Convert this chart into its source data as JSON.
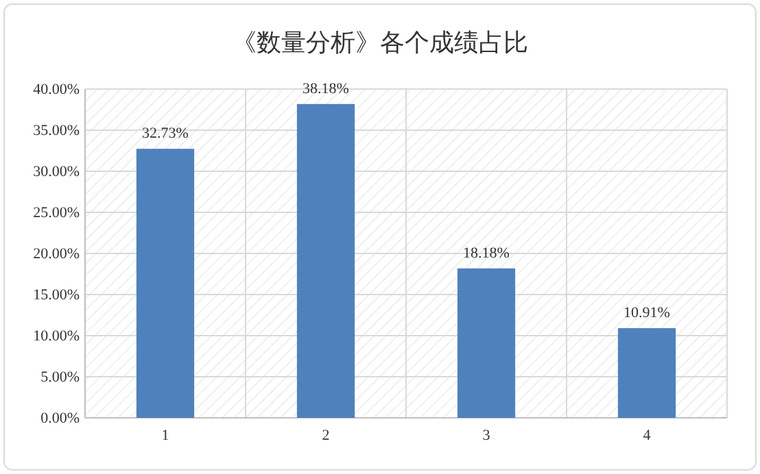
{
  "chart_data": {
    "type": "bar",
    "title": "《数量分析》各个成绩占比",
    "categories": [
      "1",
      "2",
      "3",
      "4"
    ],
    "values": [
      32.73,
      38.18,
      18.18,
      10.91
    ],
    "value_labels": [
      "32.73%",
      "38.18%",
      "18.18%",
      "10.91%"
    ],
    "color": "#4f81bd",
    "ylim": [
      0,
      40
    ],
    "yticks": [
      {
        "value": 0,
        "label": "0.00%"
      },
      {
        "value": 5,
        "label": "5.00%"
      },
      {
        "value": 10,
        "label": "10.00%"
      },
      {
        "value": 15,
        "label": "15.00%"
      },
      {
        "value": 20,
        "label": "20.00%"
      },
      {
        "value": 25,
        "label": "25.00%"
      },
      {
        "value": 30,
        "label": "30.00%"
      },
      {
        "value": 35,
        "label": "35.00%"
      },
      {
        "value": 40,
        "label": "40.00%"
      }
    ],
    "grid": true
  }
}
